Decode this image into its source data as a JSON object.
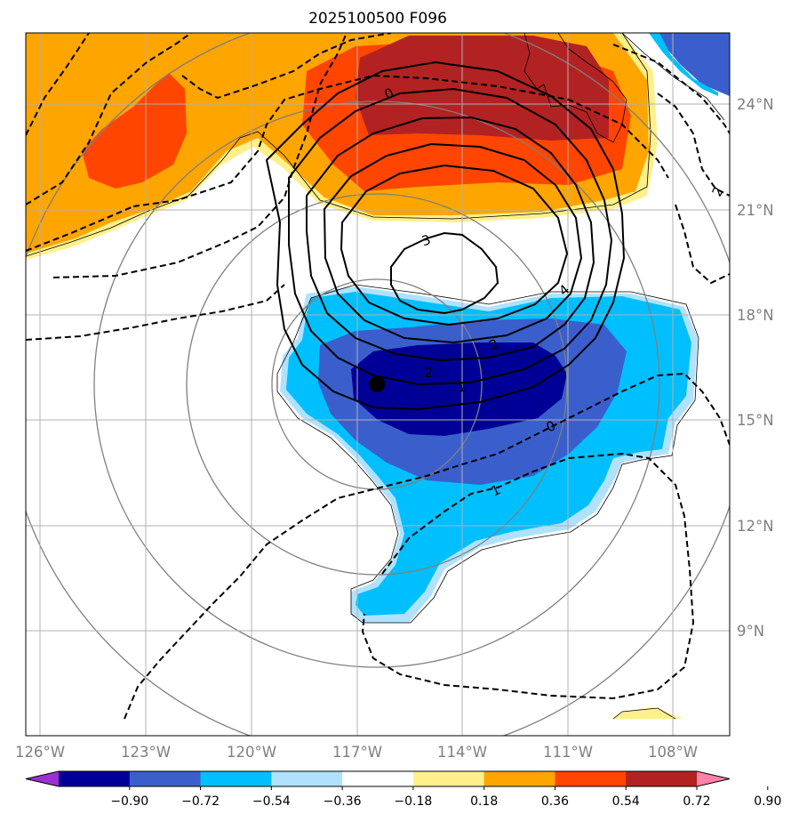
{
  "chart_data": {
    "type": "map-contour",
    "title": "2025100500 F096",
    "lon_ticks": [
      "126°W",
      "123°W",
      "120°W",
      "117°W",
      "114°W",
      "111°W",
      "108°W"
    ],
    "lat_ticks": [
      "24°N",
      "21°N",
      "18°N",
      "15°N",
      "12°N",
      "9°N"
    ],
    "lon_range": [
      -126.4,
      -106.4
    ],
    "lat_range": [
      6.0,
      25.95
    ],
    "storm_center": {
      "lon": -116.45,
      "lat": 16.05
    },
    "colorbar": {
      "levels": [
        "−0.90",
        "−0.72",
        "−0.54",
        "−0.36",
        "−0.18",
        "0.18",
        "0.36",
        "0.54",
        "0.72",
        "0.90"
      ],
      "colors": [
        "#9b30d0",
        "#000096",
        "#3a5fcd",
        "#00bfff",
        "#b0e2ff",
        "#ffffff",
        "#fff08c",
        "#ffa500",
        "#ff4500",
        "#b22222",
        "#ff82ab"
      ],
      "extend": "both"
    },
    "solid_contour_labels": [
      "0",
      "1",
      "2",
      "3",
      "4",
      "1",
      "2",
      "2"
    ],
    "dashed_contour_labels": [
      "0",
      "1",
      "2"
    ]
  }
}
